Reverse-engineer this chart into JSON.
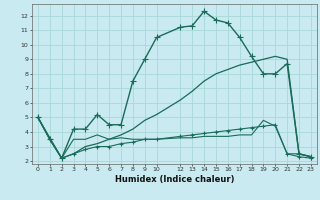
{
  "xlabel": "Humidex (Indice chaleur)",
  "background_color": "#c8eaf0",
  "grid_color": "#a8d8d8",
  "line_color": "#1a6b5a",
  "xlim": [
    -0.5,
    23.5
  ],
  "ylim": [
    1.8,
    12.8
  ],
  "xticks": [
    0,
    1,
    2,
    3,
    4,
    5,
    6,
    7,
    8,
    9,
    10,
    12,
    13,
    14,
    15,
    16,
    17,
    18,
    19,
    20,
    21,
    22,
    23
  ],
  "yticks": [
    2,
    3,
    4,
    5,
    6,
    7,
    8,
    9,
    10,
    11,
    12
  ],
  "series": [
    {
      "x": [
        0,
        1,
        2,
        3,
        4,
        5,
        6,
        7,
        8,
        9,
        10,
        12,
        13,
        14,
        15,
        16,
        17,
        18,
        19,
        20,
        21,
        22,
        23
      ],
      "y": [
        5.0,
        3.5,
        2.2,
        4.2,
        4.2,
        5.2,
        4.5,
        4.5,
        7.5,
        9.0,
        10.5,
        11.2,
        11.3,
        12.3,
        11.7,
        11.5,
        10.5,
        9.2,
        8.0,
        8.0,
        8.7,
        2.5,
        2.3
      ],
      "marker": "+",
      "markersize": 4,
      "linewidth": 1.0
    },
    {
      "x": [
        0,
        2,
        3,
        4,
        5,
        6,
        7,
        8,
        9,
        10,
        12,
        13,
        14,
        15,
        16,
        17,
        18,
        19,
        20,
        21,
        22,
        23
      ],
      "y": [
        5.0,
        2.2,
        2.5,
        3.0,
        3.2,
        3.5,
        3.8,
        4.2,
        4.8,
        5.2,
        6.2,
        6.8,
        7.5,
        8.0,
        8.3,
        8.6,
        8.8,
        9.0,
        9.2,
        9.0,
        2.5,
        2.3
      ],
      "marker": null,
      "markersize": 0,
      "linewidth": 0.9
    },
    {
      "x": [
        0,
        1,
        2,
        3,
        4,
        5,
        6,
        7,
        8,
        9,
        10,
        12,
        13,
        14,
        15,
        16,
        17,
        18,
        19,
        20,
        21,
        22,
        23
      ],
      "y": [
        5.0,
        3.5,
        2.2,
        3.5,
        3.5,
        3.8,
        3.5,
        3.6,
        3.5,
        3.5,
        3.5,
        3.6,
        3.6,
        3.7,
        3.7,
        3.7,
        3.8,
        3.8,
        4.8,
        4.4,
        2.5,
        2.5,
        2.3
      ],
      "marker": null,
      "markersize": 0,
      "linewidth": 0.8
    },
    {
      "x": [
        0,
        1,
        2,
        3,
        4,
        5,
        6,
        7,
        8,
        9,
        10,
        12,
        13,
        14,
        15,
        16,
        17,
        18,
        19,
        20,
        21,
        22,
        23
      ],
      "y": [
        5.0,
        3.5,
        2.2,
        2.5,
        2.8,
        3.0,
        3.0,
        3.2,
        3.3,
        3.5,
        3.5,
        3.7,
        3.8,
        3.9,
        4.0,
        4.1,
        4.2,
        4.3,
        4.4,
        4.5,
        2.5,
        2.3,
        2.2
      ],
      "marker": "+",
      "markersize": 3,
      "linewidth": 0.8
    }
  ]
}
